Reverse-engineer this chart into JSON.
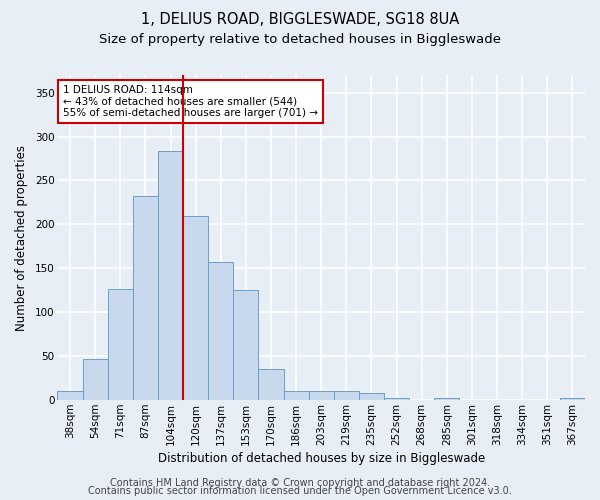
{
  "title_line1": "1, DELIUS ROAD, BIGGLESWADE, SG18 8UA",
  "title_line2": "Size of property relative to detached houses in Biggleswade",
  "xlabel": "Distribution of detached houses by size in Biggleswade",
  "ylabel": "Number of detached properties",
  "categories": [
    "38sqm",
    "54sqm",
    "71sqm",
    "87sqm",
    "104sqm",
    "120sqm",
    "137sqm",
    "153sqm",
    "170sqm",
    "186sqm",
    "203sqm",
    "219sqm",
    "235sqm",
    "252sqm",
    "268sqm",
    "285sqm",
    "301sqm",
    "318sqm",
    "334sqm",
    "351sqm",
    "367sqm"
  ],
  "values": [
    10,
    47,
    127,
    232,
    284,
    210,
    157,
    125,
    35,
    10,
    10,
    10,
    8,
    3,
    0,
    3,
    0,
    0,
    0,
    0,
    3
  ],
  "bar_color": "#c9d9ed",
  "bar_edge_color": "#6a9fc8",
  "vline_x": 4.5,
  "vline_color": "#cc0000",
  "annotation_text": "1 DELIUS ROAD: 114sqm\n← 43% of detached houses are smaller (544)\n55% of semi-detached houses are larger (701) →",
  "annotation_box_color": "#ffffff",
  "annotation_box_edge": "#cc0000",
  "ylim": [
    0,
    370
  ],
  "yticks": [
    0,
    50,
    100,
    150,
    200,
    250,
    300,
    350
  ],
  "footer_line1": "Contains HM Land Registry data © Crown copyright and database right 2024.",
  "footer_line2": "Contains public sector information licensed under the Open Government Licence v3.0.",
  "fig_bg_color": "#e8eef5",
  "plot_bg_color": "#e8eef5",
  "grid_color": "#ffffff",
  "title_fontsize": 10.5,
  "subtitle_fontsize": 9.5,
  "footer_fontsize": 7,
  "axis_label_fontsize": 8.5,
  "tick_fontsize": 7.5,
  "annot_fontsize": 7.5
}
